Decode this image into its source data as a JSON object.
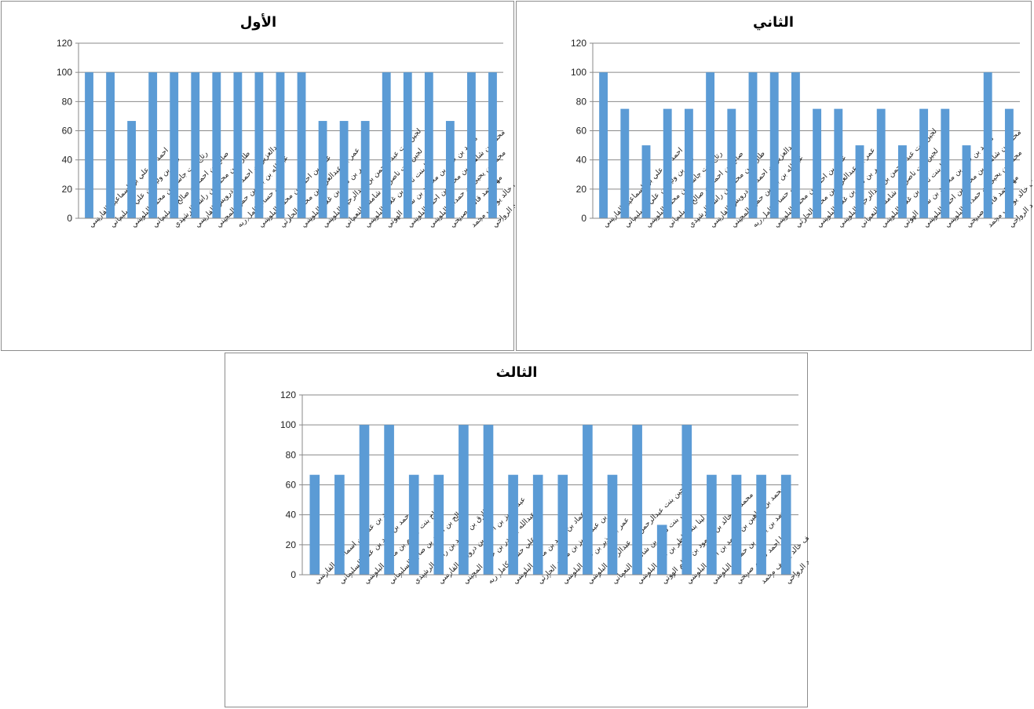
{
  "charts": [
    {
      "panel_name": "chart-panel-first",
      "chart_data": {
        "type": "bar",
        "title": "الأول",
        "xlabel": "",
        "ylabel": "",
        "ylim": [
          0,
          120
        ],
        "yticks": [
          0,
          20,
          40,
          60,
          80,
          100,
          120
        ],
        "grid": true,
        "legend": "none",
        "color": "#5B9BD5",
        "categories": [
          "احمد بن علي بن اسماعيل الفارسي",
          "حمد بن وليد بن علي السليماني",
          "رتاج بنت جاسم بن محمد البلوشي",
          "صالح بن احمد بن صالح السليماني",
          "طارق بن محمد بن راشد الرشيدي",
          "عبدالعزيز بن احمد بن درويش الفارسي",
          "عبدالله بن بدر بن حمود المجيني",
          "علي حسام كامل ربه",
          "عماد بن احمد بن محمد البلوشي",
          "عمر بن عبدالعزيز بن محمد الحارثي",
          "عمر بن نذير بن غلام البلوشي",
          "لجين بنت عبدالرحمن بن عبدالرحيم البلوشي",
          "لجين بنت ناصر بن شامس النعماني",
          "لينا بنت ناظر بن غلام البلوشي",
          "محمد بن خالد بن محمود بن سالم الهوتي",
          "محمد بن شاهين بن محمد بن احمد البلوشي",
          "محمد بن يحيى بن حمدان البلوشي",
          "مها احمد قاسم صبيحي",
          "يوسف خالد يوسف محمد",
          "مرشد بن ناصر بن سعيد الرواحي"
        ],
        "values": [
          100,
          100,
          66.7,
          100,
          100,
          100,
          100,
          100,
          100,
          100,
          100,
          66.7,
          66.7,
          66.7,
          100,
          100,
          100,
          66.7,
          100,
          100
        ]
      }
    },
    {
      "panel_name": "chart-panel-second",
      "chart_data": {
        "type": "bar",
        "title": "الثاني",
        "xlabel": "",
        "ylabel": "",
        "ylim": [
          0,
          120
        ],
        "yticks": [
          0,
          20,
          40,
          60,
          80,
          100,
          120
        ],
        "grid": true,
        "legend": "none",
        "color": "#5B9BD5",
        "categories": [
          "احمد بن علي بن اسماعيل الفارسي",
          "حمد بن وليد بن علي السليماني",
          "رتاج بنت جاسم بن محمد البلوشي",
          "صالح بن احمد بن صالح السليماني",
          "طارق بن محمد بن راشد الرشيدي",
          "عبدالعزيز بن احمد بن درويش الفارسي",
          "عبدالله بن بدر بن حمود المجيني",
          "علي حسام كامل ربه",
          "عماد بن احمد بن محمد البلوشي",
          "عمر بن عبدالعزيز بن محمد الحارثي",
          "عمر بن نذير بن غلام البلوشي",
          "لجين بنت عبدالرحمن بن عبدالرحيم البلوشي",
          "لجين بنت ناصر بن شامس النعماني",
          "لينا بنت ناظر بن غلام البلوشي",
          "محمد بن خالد بن محمود بن سالم الهوتي",
          "محمد بن شاهين بن محمد بن احمد البلوشي",
          "محمد بن يحيى بن حمدان البلوشي",
          "مها احمد قاسم صبيحي",
          "يوسف خالد يوسف محمد",
          "مرشد بن ناصر بن سعيد الرواحي"
        ],
        "values": [
          100,
          75,
          50,
          75,
          75,
          100,
          75,
          100,
          100,
          100,
          75,
          75,
          50,
          75,
          50,
          75,
          75,
          50,
          100,
          75
        ]
      }
    },
    {
      "panel_name": "chart-panel-third",
      "chart_data": {
        "type": "bar",
        "title": "الثالث",
        "xlabel": "",
        "ylabel": "",
        "ylim": [
          0,
          120
        ],
        "yticks": [
          0,
          20,
          40,
          60,
          80,
          100,
          120
        ],
        "grid": true,
        "legend": "none",
        "color": "#5B9BD5",
        "categories": [
          "احمد بن علي بن اسماعيل الفارسي",
          "حمد بن وليد بن علي السليماني",
          "رتاج بنت جاسم بن محمد البلوشي",
          "صالح بن احمد بن صالح السليماني",
          "طارق بن محمد بن راشد الرشيدي",
          "عبدالعزيز بن احمد بن درويش الفارسي",
          "عبدالله بن بدر بن حمود المجيني",
          "علي حسام كامل ربه",
          "عماد بن احمد بن محمد البلوشي",
          "عمر بن عبدالعزيز بن محمد الحارثي",
          "عمر بن نذير بن غلام البلوشي",
          "لجين بنت عبدالرحمن بن عبدالرحيم البلوشي",
          "لجين بنت ناصر بن شامس النعماني",
          "لينا بنت ناظر بن غلام البلوشي",
          "محمد بن خالد بن محمود بن سالم الهوتي",
          "محمد بن شاهين بن محمد بن احمد البلوشي",
          "محمد بن يحيى بن حمدان البلوشي",
          "مها احمد قاسم صبيحي",
          "يوسف خالد يوسف محمد",
          "مرشد بن ناصر بن سعيد الرواحي"
        ],
        "values": [
          66.7,
          66.7,
          100,
          100,
          66.7,
          66.7,
          100,
          100,
          66.7,
          66.7,
          66.7,
          100,
          66.7,
          100,
          33.3,
          100,
          66.7,
          66.7,
          66.7,
          66.7
        ]
      }
    }
  ]
}
